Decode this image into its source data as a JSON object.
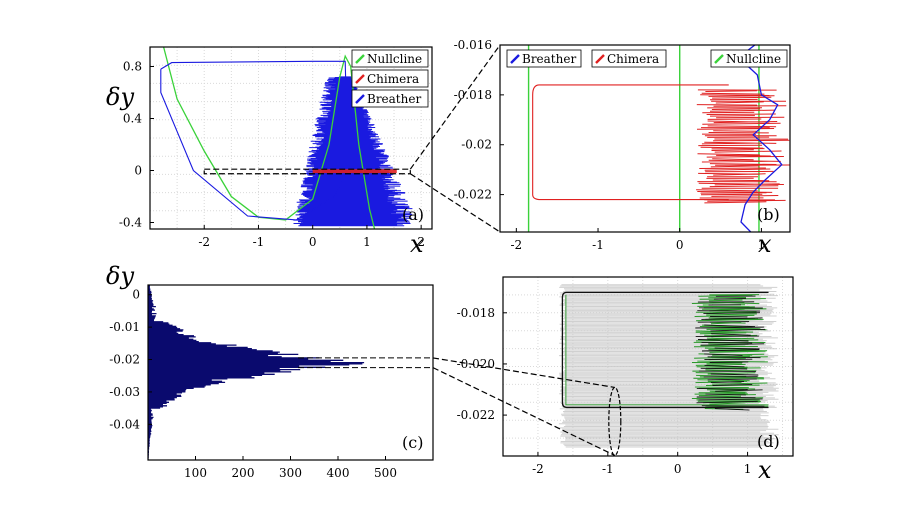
{
  "colors": {
    "nullcline": "#3ad23a",
    "chimera": "#e02020",
    "breather": "#1a1ae0",
    "histogram": "#0a0a6e",
    "trajectory": "#111111",
    "ensemble": "#c8c8c8",
    "chimera_d": "#2a9a2a",
    "grid": "#d9d9d9"
  },
  "chart_data": [
    {
      "id": "a",
      "type": "line",
      "panel_label": "(a)",
      "xlabel": "x",
      "ylabel": "δy",
      "xlim": [
        -3,
        2.2
      ],
      "ylim": [
        -0.45,
        0.95
      ],
      "xticks": [
        "-2",
        "-1",
        "0",
        "1",
        "2"
      ],
      "xtick_values": [
        -2,
        -1,
        0,
        1,
        2
      ],
      "yticks": [
        "-0.4",
        "0",
        "0.4",
        "0.8"
      ],
      "ytick_values": [
        -0.4,
        0,
        0.4,
        0.8
      ],
      "grid": true,
      "legend": [
        "Nullcline",
        "Chimera",
        "Breather"
      ],
      "legend_position": "top-right",
      "series": [
        {
          "name": "Nullcline",
          "kind": "cubic",
          "note_visible": false
        },
        {
          "name": "Chimera"
        },
        {
          "name": "Breather"
        }
      ],
      "breather_cycle": [
        [
          -2.8,
          0.78
        ],
        [
          -2.6,
          0.83
        ],
        [
          0.0,
          0.84
        ],
        [
          0.6,
          0.84
        ],
        [
          0.62,
          0.5
        ],
        [
          0.65,
          0.0
        ],
        [
          0.4,
          -0.2
        ],
        [
          -0.3,
          -0.38
        ],
        [
          -1.2,
          -0.35
        ],
        [
          -2.2,
          0.0
        ],
        [
          -2.8,
          0.6
        ],
        [
          -2.8,
          0.78
        ]
      ],
      "zoom_box": {
        "x": [
          -2.0,
          1.8
        ],
        "y": [
          -0.025,
          0.01
        ]
      }
    },
    {
      "id": "b",
      "type": "line",
      "panel_label": "(b)",
      "xlabel": "x",
      "xlim": [
        -2.2,
        1.35
      ],
      "ylim": [
        -0.0235,
        -0.016
      ],
      "xticks": [
        "-2",
        "-1",
        "0",
        "1"
      ],
      "xtick_values": [
        -2,
        -1,
        0,
        1
      ],
      "yticks": [
        "-0.016",
        "-0.018",
        "-0.02",
        "-0.022"
      ],
      "ytick_values": [
        -0.016,
        -0.018,
        -0.02,
        -0.022
      ],
      "grid": false,
      "legend": [
        "Breather",
        "Chimera",
        "Nullcline"
      ],
      "legend_position": "top",
      "chimera_cycle": {
        "x_left": -1.8,
        "x_right": 0.6,
        "y_top": -0.0176,
        "y_bottom": -0.0222
      },
      "nullcline_x": [
        -1.85,
        0.0,
        0.97
      ]
    },
    {
      "id": "c",
      "type": "bar",
      "orientation": "horizontal",
      "panel_label": "(c)",
      "ylabel": "δy",
      "xlim": [
        0,
        600
      ],
      "ylim": [
        -0.051,
        0.003
      ],
      "xticks": [
        "100",
        "200",
        "300",
        "400",
        "500"
      ],
      "xtick_values": [
        100,
        200,
        300,
        400,
        500
      ],
      "yticks": [
        "0",
        "-0.01",
        "-0.02",
        "-0.03",
        "-0.04"
      ],
      "ytick_values": [
        0,
        -0.01,
        -0.02,
        -0.03,
        -0.04
      ],
      "histogram_peak": {
        "y": -0.021,
        "count": 520
      },
      "histogram_spread": 0.0045,
      "zoom_box": {
        "x": [
          0,
          600
        ],
        "y": [
          -0.0225,
          -0.0195
        ]
      }
    },
    {
      "id": "d",
      "type": "line",
      "panel_label": "(d)",
      "xlabel": "x",
      "xlim": [
        -2.5,
        1.65
      ],
      "ylim": [
        -0.0236,
        -0.0166
      ],
      "xticks": [
        "-2",
        "-1",
        "0",
        "1"
      ],
      "xtick_values": [
        -2,
        -1,
        0,
        1
      ],
      "yticks": [
        "-0.018",
        "-0.020",
        "-0.022"
      ],
      "ytick_values": [
        -0.018,
        -0.02,
        -0.022
      ],
      "grid": true,
      "cycle": {
        "x_left": -1.65,
        "x_right": 1.3,
        "y_top": -0.0172,
        "y_bottom": -0.0217
      },
      "ellipse": {
        "x": -0.9,
        "y": -0.0217
      }
    }
  ]
}
